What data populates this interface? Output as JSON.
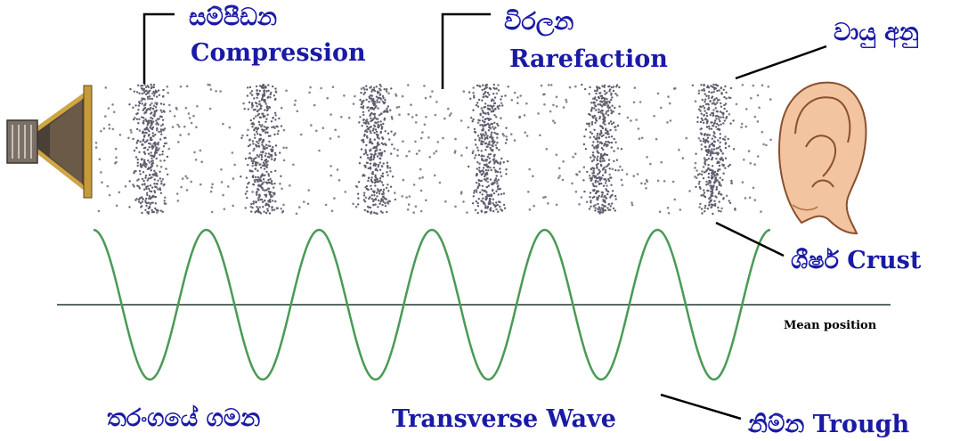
{
  "labels": {
    "compression_si": "සම්පීඩන",
    "compression_en": "Compression",
    "rarefaction_si": "විරලන",
    "rarefaction_en": "Rarefaction",
    "air_particles_si": "වායු අනු",
    "crest": "ශීර්ෂ Crust",
    "mean_position": "Mean position",
    "wave_motion_si": "තරංගයේ ගමන",
    "transverse_wave": "Transverse Wave",
    "trough": "නිම්න Trough"
  },
  "colors": {
    "label": "#1a1aa6",
    "wave": "#4a9a55",
    "mean_line": "#5a6a66",
    "particle": "#5e5e6e",
    "pointer": "#000000",
    "speaker_gold": "#d0a640",
    "speaker_dark": "#4a4035",
    "ear_skin": "#f2c4a0",
    "ear_outline": "#8a5030"
  },
  "icons": {
    "source": "loudspeaker-icon",
    "receiver": "ear-icon"
  },
  "wave": {
    "cycles": 6
  }
}
